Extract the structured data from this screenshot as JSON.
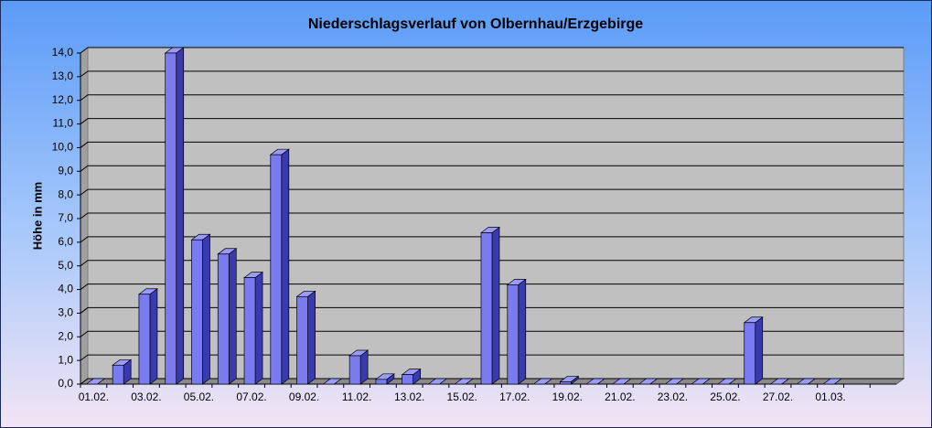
{
  "chart_data": {
    "type": "bar",
    "title": "Niederschlagsverlauf von Olbernhau/Erzgebirge",
    "y_axis_label": "Höhe in  mm",
    "categories": [
      "01.02.",
      null,
      "03.02.",
      null,
      "05.02.",
      null,
      "07.02.",
      null,
      "09.02.",
      null,
      "11.02.",
      null,
      "13.02.",
      null,
      "15.02.",
      null,
      "17.02.",
      null,
      "19.02.",
      null,
      "21.02.",
      null,
      "23.02.",
      null,
      "25.02.",
      null,
      "27.02.",
      null,
      "01.03.",
      null,
      null
    ],
    "values": [
      0,
      0.8,
      3.8,
      14.0,
      6.1,
      5.5,
      4.5,
      9.7,
      3.7,
      0,
      1.2,
      0.2,
      0.4,
      0,
      0,
      6.4,
      4.2,
      0,
      0.1,
      0,
      0,
      0,
      0,
      0,
      0,
      2.6,
      0,
      0,
      0,
      null,
      null
    ],
    "color": "#7b7bf0",
    "ylim": [
      0,
      14
    ],
    "yticks": [
      {
        "value": 0,
        "label": "0,0"
      },
      {
        "value": 1,
        "label": "1,0"
      },
      {
        "value": 2,
        "label": "2,0"
      },
      {
        "value": 3,
        "label": "3,0"
      },
      {
        "value": 4,
        "label": "4,0"
      },
      {
        "value": 5,
        "label": "5,0"
      },
      {
        "value": 6,
        "label": "6,0"
      },
      {
        "value": 7,
        "label": "7,0"
      },
      {
        "value": 8,
        "label": "8,0"
      },
      {
        "value": 9,
        "label": "9,0"
      },
      {
        "value": 10,
        "label": "10,0"
      },
      {
        "value": 11,
        "label": "11,0"
      },
      {
        "value": 12,
        "label": "12,0"
      },
      {
        "value": 13,
        "label": "13,0"
      },
      {
        "value": 14,
        "label": "14,0"
      }
    ],
    "grid": true
  }
}
